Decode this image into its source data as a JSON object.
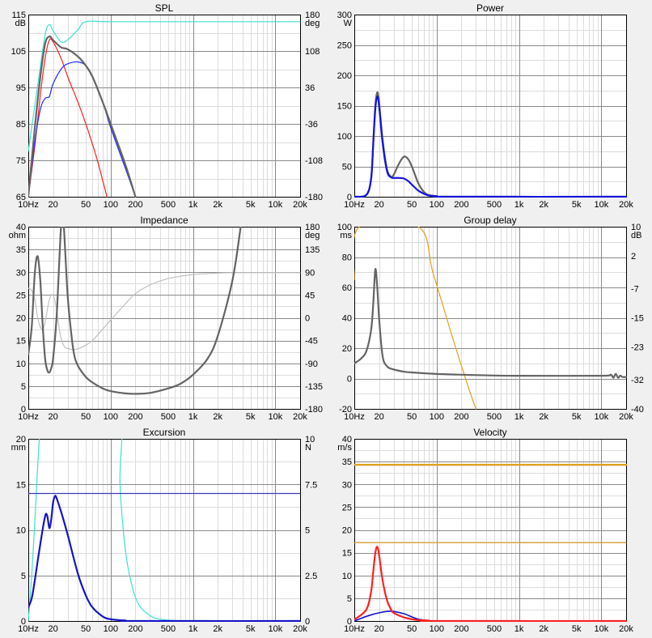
{
  "chart_data": [
    {
      "id": "spl",
      "type": "line",
      "title": "SPL",
      "x_scale": "log",
      "xlim": [
        10,
        20000
      ],
      "x_ticks": [
        10,
        20,
        50,
        100,
        200,
        500,
        1000,
        2000,
        5000,
        10000,
        20000
      ],
      "x_tick_labels": [
        "10Hz",
        "20",
        "50",
        "100",
        "200",
        "500",
        "1k",
        "2k",
        "5k",
        "10k",
        "20k"
      ],
      "y_unit": "dB",
      "ylim": [
        65,
        115
      ],
      "y_ticks": [
        65,
        75,
        85,
        95,
        105,
        115
      ],
      "y2_unit": "deg",
      "y2lim": [
        -180,
        180
      ],
      "y2_ticks": [
        -180,
        -108,
        -36,
        36,
        108,
        180
      ],
      "grid": true,
      "series": [
        {
          "color": "#40e0d0",
          "width": 1.2,
          "axis": "y2",
          "x": [
            10,
            13,
            16,
            18,
            20,
            25,
            30,
            40,
            50,
            100,
            1000,
            20000
          ],
          "y": [
            -90,
            40,
            140,
            160,
            148,
            126,
            130,
            150,
            166,
            166,
            166,
            166
          ]
        },
        {
          "color": "#ff2020",
          "width": 1.2,
          "axis": "y",
          "x": [
            10,
            12,
            14,
            16,
            18,
            20,
            25,
            30,
            40,
            50,
            60,
            70,
            80,
            90
          ],
          "y": [
            65,
            79,
            93,
            103,
            108,
            107.5,
            103,
            98,
            91,
            85,
            79.5,
            74.5,
            69.5,
            65
          ]
        },
        {
          "color": "#1e28ff",
          "width": 1.2,
          "axis": "y",
          "x": [
            10,
            12,
            14,
            16,
            18,
            20,
            25,
            30,
            40,
            50,
            60,
            80,
            100,
            150,
            200
          ],
          "y": [
            65,
            80,
            89,
            92,
            92.5,
            96,
            100,
            101.5,
            102,
            101,
            98,
            91,
            84,
            73,
            65
          ]
        },
        {
          "color": "#646464",
          "width": 2.2,
          "axis": "y",
          "x": [
            10,
            12,
            14,
            16,
            18,
            20,
            25,
            30,
            40,
            50,
            60,
            80,
            100,
            150,
            200
          ],
          "y": [
            65,
            84,
            98,
            107,
            109,
            108,
            106,
            105.5,
            103.5,
            101,
            98,
            91,
            85,
            74,
            65
          ]
        }
      ]
    },
    {
      "id": "power",
      "type": "line",
      "title": "Power",
      "x_scale": "log",
      "xlim": [
        10,
        20000
      ],
      "x_ticks": [
        10,
        20,
        50,
        100,
        200,
        500,
        1000,
        2000,
        5000,
        10000,
        20000
      ],
      "x_tick_labels": [
        "10Hz",
        "20",
        "50",
        "100",
        "200",
        "500",
        "1k",
        "2k",
        "5k",
        "10k",
        "20k"
      ],
      "y_unit": "W",
      "ylim": [
        0,
        300
      ],
      "y_ticks": [
        0,
        50,
        100,
        150,
        200,
        250,
        300
      ],
      "grid": true,
      "series": [
        {
          "color": "#646464",
          "width": 2.2,
          "axis": "y",
          "x": [
            10,
            14,
            16,
            17,
            18,
            19,
            20,
            22,
            25,
            28,
            30,
            35,
            40,
            45,
            50,
            60,
            70,
            80,
            100,
            150,
            20000
          ],
          "y": [
            0,
            3,
            30,
            90,
            150,
            172,
            155,
            95,
            45,
            33,
            36,
            55,
            66,
            62,
            50,
            22,
            8,
            3,
            1,
            0,
            0
          ]
        },
        {
          "color": "#1414dc",
          "width": 2.2,
          "axis": "y",
          "x": [
            10,
            14,
            16,
            17,
            18,
            19,
            20,
            22,
            25,
            28,
            30,
            35,
            40,
            45,
            50,
            60,
            70,
            80,
            100,
            150,
            20000
          ],
          "y": [
            0,
            3,
            30,
            90,
            145,
            165,
            150,
            90,
            42,
            32,
            31,
            31,
            30,
            26,
            20,
            10,
            5,
            2,
            1,
            0,
            0
          ]
        }
      ]
    },
    {
      "id": "impedance",
      "type": "line",
      "title": "Impedance",
      "x_scale": "log",
      "xlim": [
        10,
        20000
      ],
      "x_ticks": [
        10,
        20,
        50,
        100,
        200,
        500,
        1000,
        2000,
        5000,
        10000,
        20000
      ],
      "x_tick_labels": [
        "10Hz",
        "20",
        "50",
        "100",
        "200",
        "500",
        "1k",
        "2k",
        "5k",
        "10k",
        "20k"
      ],
      "y_unit": "ohm",
      "ylim": [
        0,
        40
      ],
      "y_ticks": [
        0,
        5,
        10,
        15,
        20,
        25,
        30,
        35,
        40
      ],
      "y2_unit": "deg",
      "y2lim": [
        -180,
        180
      ],
      "y2_ticks": [
        -180,
        -135,
        -90,
        -45,
        0,
        45,
        90,
        135,
        180
      ],
      "grid": true,
      "series": [
        {
          "color": "#c0c0c0",
          "width": 1.2,
          "axis": "y",
          "x": [
            10,
            11,
            12,
            13,
            14,
            15,
            16,
            18,
            20,
            22,
            24,
            26,
            28,
            30,
            35,
            40,
            50,
            60,
            80,
            100,
            150,
            200,
            300,
            500,
            1000,
            2000,
            3000,
            20000
          ],
          "y": [
            26.5,
            26,
            24,
            20,
            18,
            17.5,
            19,
            24,
            25,
            22,
            17,
            14.5,
            13.5,
            13.3,
            13,
            13.2,
            14,
            15,
            17.5,
            19.5,
            23,
            25.3,
            27.2,
            28.6,
            29.5,
            29.8,
            29.9,
            29.9
          ]
        },
        {
          "color": "#646464",
          "width": 2.2,
          "axis": "y",
          "x": [
            10,
            11,
            12,
            13,
            14,
            15,
            16,
            17,
            18,
            19,
            20,
            22,
            24,
            25,
            26,
            27,
            28,
            30,
            33,
            36,
            40,
            50,
            60,
            80,
            100,
            150,
            200,
            300,
            500,
            700,
            1000,
            1500,
            2000,
            3000,
            3800
          ],
          "y": [
            12,
            18,
            30,
            33.5,
            28,
            18,
            11,
            8.5,
            8,
            9,
            11,
            20,
            34,
            40,
            42,
            40,
            35,
            25,
            17,
            12,
            9.5,
            7,
            5.8,
            4.5,
            3.9,
            3.4,
            3.3,
            3.5,
            4.5,
            5.5,
            7.5,
            11,
            16,
            28,
            40
          ]
        }
      ]
    },
    {
      "id": "group-delay",
      "type": "line",
      "title": "Group delay",
      "x_scale": "log",
      "xlim": [
        10,
        20000
      ],
      "x_ticks": [
        10,
        20,
        50,
        100,
        200,
        500,
        1000,
        2000,
        5000,
        10000,
        20000
      ],
      "x_tick_labels": [
        "10Hz",
        "20",
        "50",
        "100",
        "200",
        "500",
        "1k",
        "2k",
        "5k",
        "10k",
        "20k"
      ],
      "y_unit": "ms",
      "ylim": [
        -20,
        100
      ],
      "y_ticks": [
        -20,
        0,
        20,
        40,
        60,
        80,
        100
      ],
      "y2_unit": "dB",
      "y2lim": [
        -40,
        10
      ],
      "y2_ticks": [
        -40,
        -32,
        -23,
        -15,
        -7,
        2,
        10
      ],
      "grid": true,
      "series": [
        {
          "color": "#e0a020",
          "width": 1.2,
          "axis": "y",
          "x": [
            10,
            11.5,
            60,
            90,
            150,
            240,
            300
          ],
          "y": [
            65,
            100,
            100,
            70,
            30,
            -5,
            -20
          ]
        },
        {
          "color": "#646464",
          "width": 2.2,
          "axis": "y",
          "x": [
            10,
            12,
            14,
            16,
            17,
            18,
            19,
            20,
            22,
            25,
            30,
            40,
            50,
            100,
            200,
            500,
            1000,
            10000,
            13000,
            14000,
            15000,
            16000,
            17000,
            18000,
            20000
          ],
          "y": [
            10,
            13,
            18,
            32,
            50,
            72,
            60,
            40,
            15,
            8,
            6,
            4.5,
            4,
            3,
            2.5,
            2,
            1.8,
            1.8,
            2.5,
            0.5,
            3,
            0.5,
            2,
            1,
            1
          ]
        }
      ]
    },
    {
      "id": "excursion",
      "type": "line",
      "title": "Excursion",
      "x_scale": "log",
      "xlim": [
        10,
        20000
      ],
      "x_ticks": [
        10,
        20,
        50,
        100,
        200,
        500,
        1000,
        2000,
        5000,
        10000,
        20000
      ],
      "x_tick_labels": [
        "10Hz",
        "20",
        "50",
        "100",
        "200",
        "500",
        "1k",
        "2k",
        "5k",
        "10k",
        "20k"
      ],
      "y_unit": "mm",
      "ylim": [
        0,
        20
      ],
      "y_ticks": [
        0,
        5,
        10,
        15,
        20
      ],
      "y2_unit": "N",
      "y2lim": [
        0,
        10
      ],
      "y2_ticks": [
        0,
        2.5,
        5,
        7.5,
        10
      ],
      "grid": true,
      "series": [
        {
          "color": "#40e0d0",
          "width": 1.2,
          "axis": "y",
          "x": [
            10,
            11,
            12,
            13,
            14,
            15,
            120,
            130,
            150,
            180,
            220,
            300,
            400,
            600,
            1000
          ],
          "y": [
            0,
            5,
            11,
            17,
            22,
            28,
            28,
            15,
            8,
            4,
            1.8,
            0.6,
            0.2,
            0.05,
            0
          ]
        },
        {
          "color": "#3c3cb4",
          "width": 1.2,
          "axis": "y",
          "x": [
            10,
            20000
          ],
          "y": [
            14,
            14
          ]
        },
        {
          "color": "#1414c8",
          "width": 2.2,
          "axis": "y",
          "x": [
            10,
            11,
            12,
            14,
            16,
            17,
            18,
            19,
            20,
            21,
            22,
            25,
            30,
            40,
            50,
            60,
            80,
            100,
            150,
            200,
            20000
          ],
          "y": [
            1.5,
            2.5,
            4.5,
            8.5,
            11.5,
            11.5,
            10.2,
            11.2,
            13,
            13.7,
            13.5,
            12,
            9.5,
            5.2,
            2.8,
            1.5,
            0.5,
            0.2,
            0.05,
            0,
            0
          ]
        }
      ]
    },
    {
      "id": "velocity",
      "type": "line",
      "title": "Velocity",
      "x_scale": "log",
      "xlim": [
        10,
        20000
      ],
      "x_ticks": [
        10,
        20,
        50,
        100,
        200,
        500,
        1000,
        2000,
        5000,
        10000,
        20000
      ],
      "x_tick_labels": [
        "10Hz",
        "20",
        "50",
        "100",
        "200",
        "500",
        "1k",
        "2k",
        "5k",
        "10k",
        "20k"
      ],
      "y_unit": "m/s",
      "ylim": [
        0,
        40
      ],
      "y_ticks": [
        0,
        5,
        10,
        15,
        20,
        25,
        30,
        35,
        40
      ],
      "grid": true,
      "series": [
        {
          "color": "#e0a020",
          "width": 2.4,
          "axis": "y",
          "x": [
            10,
            20000
          ],
          "y": [
            34.3,
            34.3
          ]
        },
        {
          "color": "#e0a020",
          "width": 1.2,
          "axis": "y",
          "x": [
            10,
            20000
          ],
          "y": [
            17.2,
            17.2
          ]
        },
        {
          "color": "#1414c8",
          "width": 1.6,
          "axis": "y",
          "x": [
            10,
            15,
            20,
            25,
            30,
            40,
            50,
            60,
            80,
            100,
            20000
          ],
          "y": [
            0,
            1.2,
            1.8,
            2.1,
            2.1,
            1.6,
            0.9,
            0.4,
            0.1,
            0,
            0
          ]
        },
        {
          "color": "#ff2020",
          "width": 2.2,
          "axis": "y",
          "x": [
            10,
            14,
            16,
            17,
            18,
            19,
            20,
            22,
            25,
            28,
            30,
            40,
            50,
            60,
            80,
            100,
            20000
          ],
          "y": [
            0.3,
            2.5,
            6.5,
            11,
            15,
            16.3,
            14.5,
            9,
            4.5,
            2.5,
            1.8,
            0.8,
            0.4,
            0.2,
            0.1,
            0,
            0
          ]
        }
      ]
    }
  ]
}
